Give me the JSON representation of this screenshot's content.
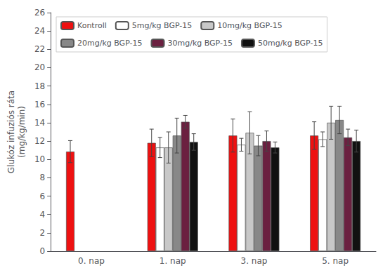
{
  "chart_data": {
    "type": "bar",
    "ylabel": "Glukóz infuziós ráta\n(mg/kg/min)",
    "categories": [
      "0. nap",
      "1. nap",
      "3. nap",
      "5. nap"
    ],
    "series": [
      {
        "name": "Kontroll",
        "color": "#ee1111",
        "values": [
          10.85,
          11.8,
          12.6,
          12.6
        ],
        "errors": [
          1.2,
          1.5,
          1.8,
          1.5
        ]
      },
      {
        "name": "5mg/kg BGP-15",
        "color": "#ffffff",
        "values": [
          null,
          11.3,
          11.6,
          12.2
        ],
        "errors": [
          null,
          1.1,
          0.7,
          0.8
        ]
      },
      {
        "name": "10mg/kg BGP-15",
        "color": "#c8c8c8",
        "values": [
          null,
          11.3,
          12.9,
          14.0
        ],
        "errors": [
          null,
          1.7,
          2.3,
          1.8
        ]
      },
      {
        "name": "20mg/kg BGP-15",
        "color": "#888888",
        "values": [
          null,
          12.6,
          11.5,
          14.3
        ],
        "errors": [
          null,
          1.9,
          1.1,
          1.5
        ]
      },
      {
        "name": "30mg/kg BGP-15",
        "color": "#6b2040",
        "values": [
          null,
          14.1,
          12.0,
          12.4
        ],
        "errors": [
          null,
          0.7,
          1.1,
          0.9
        ]
      },
      {
        "name": "50mg/kg BGP-15",
        "color": "#111111",
        "values": [
          null,
          11.9,
          11.3,
          12.0
        ],
        "errors": [
          null,
          0.9,
          0.6,
          1.2
        ]
      }
    ],
    "ylim": [
      0,
      26
    ],
    "yticks": [
      0,
      2,
      4,
      6,
      8,
      10,
      12,
      14,
      16,
      18,
      20,
      22,
      24,
      26
    ],
    "grid": false,
    "legend": "upper left"
  }
}
